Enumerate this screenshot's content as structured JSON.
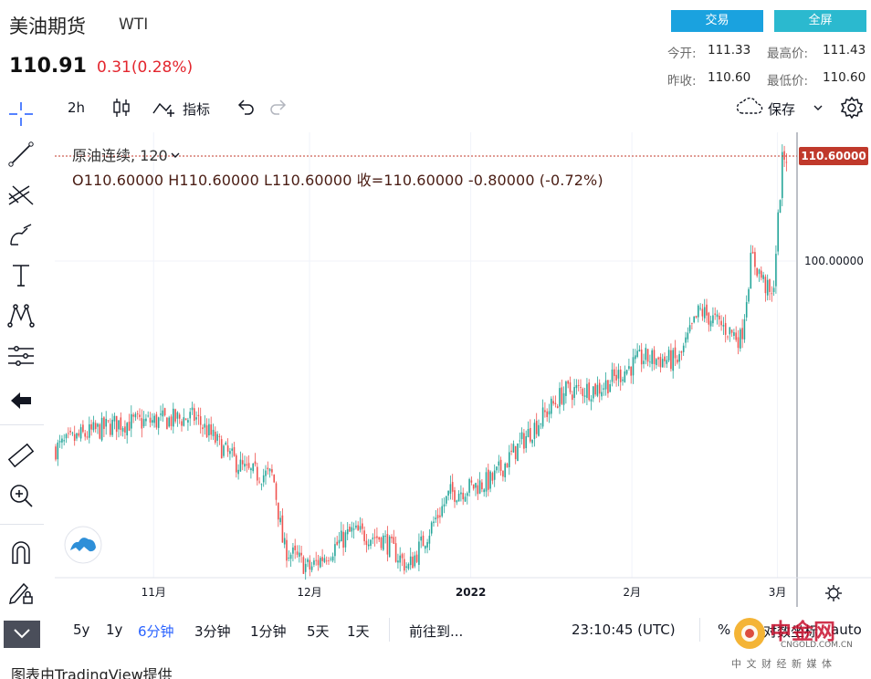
{
  "header": {
    "title": "美油期货",
    "symbol": "WTI",
    "price": "110.91",
    "change": "0.31(0.28%)",
    "trade_button": "交易",
    "fullscreen_button": "全屏",
    "open_label": "今开:",
    "open_value": "111.33",
    "high_label": "最高价:",
    "high_value": "111.43",
    "prev_close_label": "昨收:",
    "prev_close_value": "110.60",
    "low_label": "最低价:",
    "low_value": "110.60"
  },
  "toolbar": {
    "interval": "2h",
    "indicators_label": "指标",
    "save_label": "保存"
  },
  "legend": {
    "series_title": "原油连续, 120",
    "ohlc": "O110.60000  H110.60000  L110.60000  收=110.60000  -0.80000 (-0.72%)"
  },
  "chart_data": {
    "type": "candlestick",
    "x_ticks": [
      "11月",
      "12月",
      "2022",
      "2月",
      "3月"
    ],
    "y_ticks": [
      "100.00000"
    ],
    "last_price_label": "110.60000",
    "ylim": [
      68,
      113
    ],
    "series": [
      {
        "x": "2021-10-13",
        "close": 81.0
      },
      {
        "x": "2021-10-18",
        "close": 82.3
      },
      {
        "x": "2021-10-25",
        "close": 83.6
      },
      {
        "x": "2021-11-01",
        "close": 83.8
      },
      {
        "x": "2021-11-09",
        "close": 84.2
      },
      {
        "x": "2021-11-15",
        "close": 80.6
      },
      {
        "x": "2021-11-19",
        "close": 78.6
      },
      {
        "x": "2021-11-24",
        "close": 78.3
      },
      {
        "x": "2021-11-26",
        "close": 71.0
      },
      {
        "x": "2021-12-01",
        "close": 68.9
      },
      {
        "x": "2021-12-09",
        "close": 72.6
      },
      {
        "x": "2021-12-15",
        "close": 72.0
      },
      {
        "x": "2021-12-20",
        "close": 69.0
      },
      {
        "x": "2021-12-28",
        "close": 76.5
      },
      {
        "x": "2022-01-05",
        "close": 77.8
      },
      {
        "x": "2022-01-12",
        "close": 82.5
      },
      {
        "x": "2022-01-19",
        "close": 86.8
      },
      {
        "x": "2022-01-26",
        "close": 87.2
      },
      {
        "x": "2022-02-03",
        "close": 90.2
      },
      {
        "x": "2022-02-10",
        "close": 89.9
      },
      {
        "x": "2022-02-14",
        "close": 95.0
      },
      {
        "x": "2022-02-22",
        "close": 92.1
      },
      {
        "x": "2022-02-24",
        "close": 100.5
      },
      {
        "x": "2022-02-28",
        "close": 96.0
      },
      {
        "x": "2022-03-02",
        "close": 110.6
      },
      {
        "x": "2022-03-03",
        "close": 110.6
      }
    ]
  },
  "bottom_bar": {
    "range_5y": "5y",
    "range_1y": "1y",
    "range_6m": "6分钟",
    "range_3m": "3分钟",
    "range_1m": "1分钟",
    "range_5d": "5天",
    "range_1d": "1天",
    "goto": "前往到...",
    "clock": "23:10:45 (UTC)",
    "percent": "%",
    "log_label": "对数坐标",
    "auto_label": "auto"
  },
  "footer": {
    "credit": "图表由TradingView提供"
  },
  "watermark": {
    "text": "中金网",
    "url": "CNGOLD.COM.CN",
    "tagline": "中 文 财 经 新 媒 体"
  },
  "colors": {
    "up": "#26a69a",
    "down": "#ef5350",
    "price_label_bg": "#c0392b",
    "accent": "#2962ff"
  }
}
